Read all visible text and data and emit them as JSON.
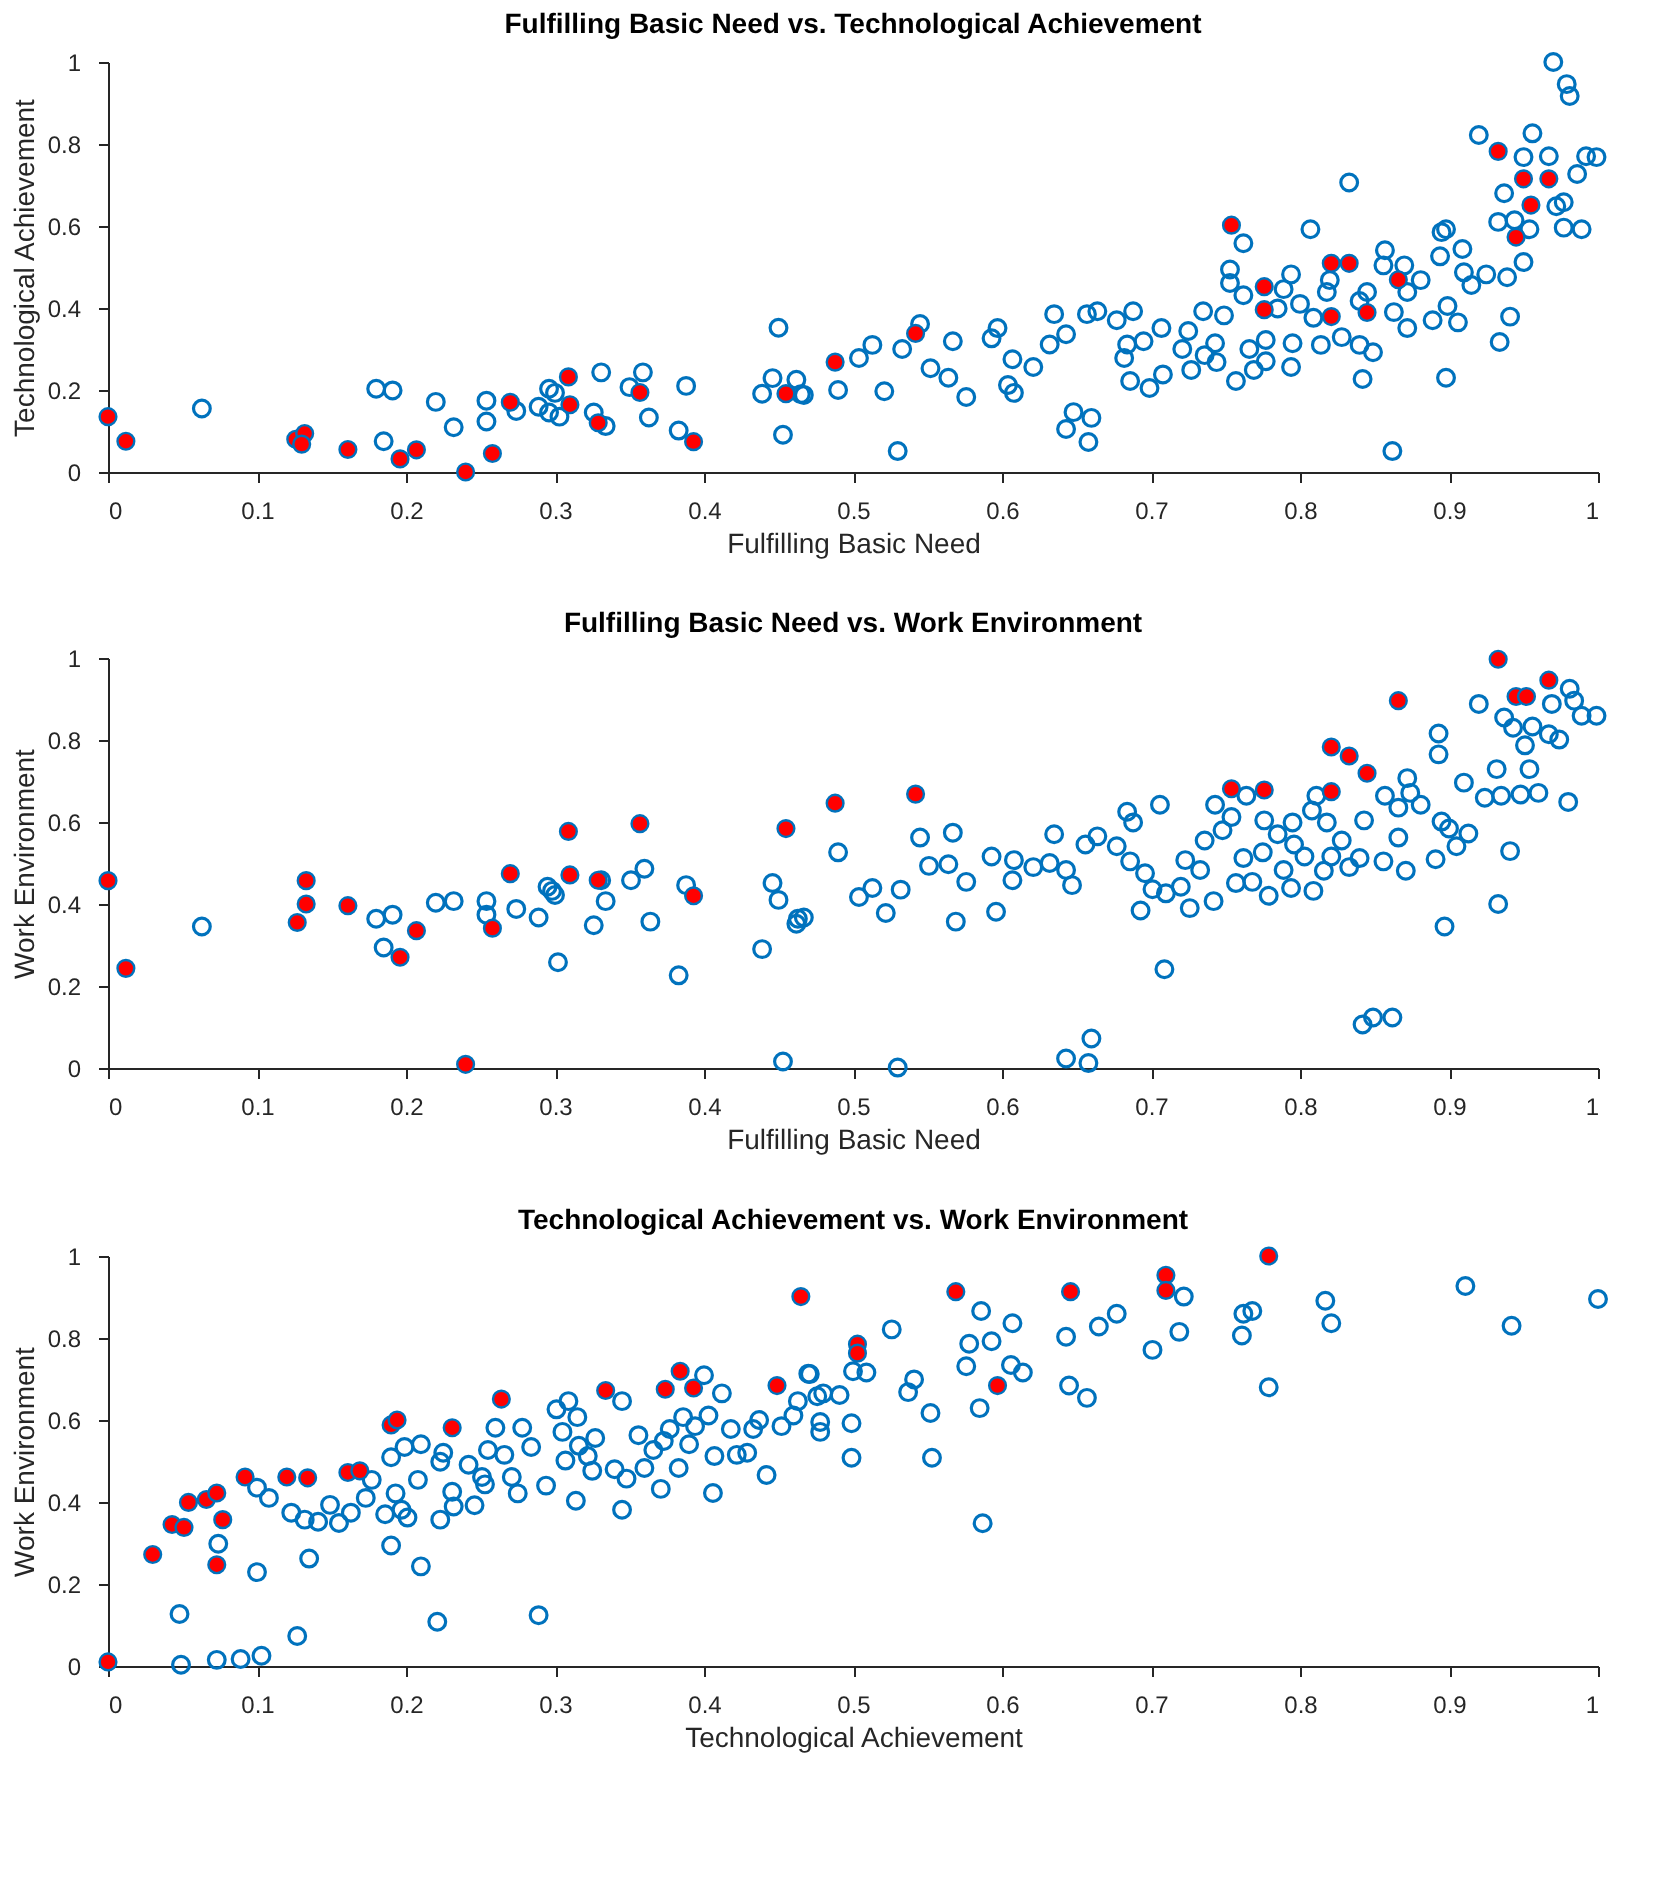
{
  "chart_data": [
    {
      "type": "scatter",
      "title": "Fulfilling Basic Need vs. Technological Achievement",
      "xlabel": "Fulfilling Basic Need",
      "ylabel": "Technological Achievement",
      "xlim": [
        0,
        1
      ],
      "ylim": [
        0,
        1
      ],
      "xticks": [
        0,
        0.1,
        0.2,
        0.3,
        0.4,
        0.5,
        0.6,
        0.7,
        0.8,
        0.9,
        1
      ],
      "yticks": [
        0,
        0.2,
        0.4,
        0.6,
        0.8,
        1
      ],
      "marker": "circle",
      "grid": false,
      "series": [
        {
          "color": "#0072bd",
          "x": [
            0.063,
            0.18,
            0.191,
            0.185,
            0.22,
            0.232,
            0.254,
            0.254,
            0.274,
            0.289,
            0.296,
            0.3,
            0.296,
            0.303,
            0.326,
            0.334,
            0.331,
            0.35,
            0.359,
            0.363,
            0.383,
            0.388,
            0.439,
            0.446,
            0.45,
            0.453,
            0.462,
            0.467,
            0.465,
            0.49,
            0.504,
            0.513,
            0.521,
            0.53,
            0.533,
            0.545,
            0.552,
            0.564,
            0.567,
            0.576,
            0.593,
            0.597,
            0.604,
            0.608,
            0.607,
            0.621,
            0.632,
            0.635,
            0.643,
            0.643,
            0.648,
            0.66,
            0.658,
            0.657,
            0.664,
            0.677,
            0.682,
            0.684,
            0.688,
            0.686,
            0.695,
            0.699,
            0.708,
            0.707,
            0.721,
            0.725,
            0.727,
            0.735,
            0.736,
            0.743,
            0.744,
            0.749,
            0.753,
            0.753,
            0.757,
            0.762,
            0.762,
            0.766,
            0.769,
            0.777,
            0.777,
            0.785,
            0.789,
            0.794,
            0.795,
            0.794,
            0.8,
            0.807,
            0.809,
            0.814,
            0.818,
            0.82,
            0.828,
            0.833,
            0.84,
            0.84,
            0.842,
            0.845,
            0.849,
            0.857,
            0.856,
            0.862,
            0.863,
            0.87,
            0.872,
            0.872,
            0.881,
            0.889,
            0.894,
            0.895,
            0.898,
            0.898,
            0.899,
            0.906,
            0.909,
            0.91,
            0.915,
            0.92,
            0.925,
            0.933,
            0.934,
            0.937,
            0.939,
            0.941,
            0.944,
            0.95,
            0.95,
            0.956,
            0.954,
            0.967,
            0.97,
            0.972,
            0.977,
            0.977,
            0.979,
            0.981,
            0.986,
            0.989,
            0.992,
            0.999
          ],
          "values": [
            0.155,
            0.203,
            0.199,
            0.075,
            0.171,
            0.109,
            0.174,
            0.123,
            0.149,
            0.159,
            0.203,
            0.193,
            0.145,
            0.135,
            0.145,
            0.112,
            0.243,
            0.207,
            0.243,
            0.133,
            0.101,
            0.21,
            0.191,
            0.229,
            0.352,
            0.091,
            0.225,
            0.188,
            0.19,
            0.2,
            0.278,
            0.31,
            0.197,
            0.051,
            0.3,
            0.361,
            0.253,
            0.23,
            0.319,
            0.183,
            0.326,
            0.351,
            0.212,
            0.193,
            0.275,
            0.256,
            0.311,
            0.385,
            0.336,
            0.105,
            0.146,
            0.132,
            0.073,
            0.385,
            0.392,
            0.37,
            0.278,
            0.311,
            0.392,
            0.222,
            0.319,
            0.205,
            0.238,
            0.351,
            0.3,
            0.344,
            0.249,
            0.392,
            0.285,
            0.314,
            0.268,
            0.382,
            0.494,
            0.461,
            0.222,
            0.558,
            0.431,
            0.3,
            0.249,
            0.322,
            0.27,
            0.399,
            0.446,
            0.482,
            0.314,
            0.256,
            0.41,
            0.592,
            0.376,
            0.31,
            0.439,
            0.468,
            0.329,
            0.706,
            0.417,
            0.31,
            0.227,
            0.439,
            0.292,
            0.541,
            0.504,
            0.051,
            0.39,
            0.504,
            0.351,
            0.439,
            0.468,
            0.37,
            0.526,
            0.585,
            0.592,
            0.23,
            0.405,
            0.365,
            0.544,
            0.487,
            0.456,
            0.822,
            0.482,
            0.61,
            0.317,
            0.68,
            0.475,
            0.379,
            0.614,
            0.512,
            0.768,
            0.826,
            0.592,
            0.77,
            1.0,
            0.648,
            0.658,
            0.596,
            0.946,
            0.917,
            0.727,
            0.592,
            0.77,
            0.768
          ]
        },
        {
          "color": "#ff0000",
          "x": [
            0,
            0.012,
            0.126,
            0.132,
            0.13,
            0.161,
            0.196,
            0.207,
            0.24,
            0.258,
            0.27,
            0.309,
            0.31,
            0.329,
            0.357,
            0.393,
            0.455,
            0.488,
            0.542,
            0.754,
            0.776,
            0.776,
            0.821,
            0.833,
            0.821,
            0.845,
            0.866,
            0.933,
            0.95,
            0.967,
            0.955,
            0.945
          ],
          "values": [
            0.135,
            0.075,
            0.08,
            0.094,
            0.068,
            0.055,
            0.032,
            0.054,
            0,
            0.045,
            0.17,
            0.232,
            0.164,
            0.12,
            0.194,
            0.074,
            0.191,
            0.268,
            0.338,
            0.602,
            0.452,
            0.396,
            0.509,
            0.509,
            0.379,
            0.389,
            0.469,
            0.782,
            0.715,
            0.715,
            0.651,
            0.573
          ]
        }
      ]
    },
    {
      "type": "scatter",
      "title": "Fulfilling Basic Need vs. Work Environment",
      "xlabel": "Fulfilling Basic Need",
      "ylabel": "Work Environment",
      "xlim": [
        0,
        1
      ],
      "ylim": [
        0,
        1
      ],
      "xticks": [
        0,
        0.1,
        0.2,
        0.3,
        0.4,
        0.5,
        0.6,
        0.7,
        0.8,
        0.9,
        1
      ],
      "yticks": [
        0,
        0.2,
        0.4,
        0.6,
        0.8,
        1
      ],
      "marker": "circle",
      "grid": false,
      "series": [
        {
          "color": "#0072bd",
          "x": [
            0.063,
            0.18,
            0.191,
            0.185,
            0.22,
            0.232,
            0.254,
            0.254,
            0.274,
            0.289,
            0.295,
            0.298,
            0.3,
            0.302,
            0.326,
            0.331,
            0.334,
            0.351,
            0.36,
            0.364,
            0.383,
            0.388,
            0.439,
            0.446,
            0.45,
            0.453,
            0.462,
            0.467,
            0.463,
            0.49,
            0.504,
            0.513,
            0.522,
            0.532,
            0.545,
            0.551,
            0.564,
            0.567,
            0.569,
            0.576,
            0.53,
            0.593,
            0.596,
            0.607,
            0.608,
            0.621,
            0.632,
            0.635,
            0.643,
            0.643,
            0.647,
            0.658,
            0.66,
            0.656,
            0.664,
            0.677,
            0.684,
            0.686,
            0.688,
            0.693,
            0.696,
            0.701,
            0.706,
            0.709,
            0.71,
            0.72,
            0.723,
            0.726,
            0.733,
            0.736,
            0.742,
            0.743,
            0.748,
            0.754,
            0.757,
            0.762,
            0.764,
            0.768,
            0.775,
            0.776,
            0.779,
            0.785,
            0.789,
            0.794,
            0.795,
            0.796,
            0.803,
            0.808,
            0.809,
            0.811,
            0.816,
            0.818,
            0.821,
            0.828,
            0.833,
            0.84,
            0.842,
            0.843,
            0.849,
            0.856,
            0.857,
            0.862,
            0.866,
            0.866,
            0.871,
            0.872,
            0.874,
            0.881,
            0.891,
            0.893,
            0.893,
            0.895,
            0.897,
            0.9,
            0.905,
            0.91,
            0.913,
            0.92,
            0.924,
            0.932,
            0.933,
            0.935,
            0.937,
            0.941,
            0.943,
            0.948,
            0.951,
            0.954,
            0.956,
            0.96,
            0.967,
            0.969,
            0.974,
            0.98,
            0.981,
            0.984,
            0.989,
            0.999
          ],
          "values": [
            0.345,
            0.364,
            0.374,
            0.294,
            0.403,
            0.407,
            0.407,
            0.374,
            0.388,
            0.367,
            0.442,
            0.432,
            0.422,
            0.258,
            0.348,
            0.458,
            0.407,
            0.458,
            0.486,
            0.357,
            0.226,
            0.446,
            0.29,
            0.451,
            0.41,
            0.016,
            0.352,
            0.367,
            0.364,
            0.526,
            0.417,
            0.439,
            0.378,
            0.435,
            0.562,
            0.493,
            0.497,
            0.574,
            0.357,
            0.454,
            0.001,
            0.516,
            0.381,
            0.458,
            0.507,
            0.49,
            0.5,
            0.57,
            0.483,
            0.023,
            0.446,
            0.012,
            0.072,
            0.545,
            0.565,
            0.541,
            0.625,
            0.504,
            0.599,
            0.384,
            0.475,
            0.436,
            0.642,
            0.241,
            0.426,
            0.442,
            0.507,
            0.39,
            0.483,
            0.555,
            0.407,
            0.642,
            0.58,
            0.612,
            0.451,
            0.512,
            0.664,
            0.454,
            0.526,
            0.604,
            0.42,
            0.57,
            0.483,
            0.439,
            0.599,
            0.545,
            0.516,
            0.628,
            0.432,
            0.664,
            0.481,
            0.599,
            0.516,
            0.555,
            0.49,
            0.512,
            0.106,
            0.604,
            0.123,
            0.504,
            0.664,
            0.123,
            0.635,
            0.562,
            0.481,
            0.707,
            0.671,
            0.642,
            0.509,
            0.816,
            0.765,
            0.601,
            0.345,
            0.584,
            0.541,
            0.696,
            0.572,
            0.888,
            0.659,
            0.729,
            0.4,
            0.664,
            0.855,
            0.529,
            0.83,
            0.667,
            0.787,
            0.729,
            0.833,
            0.671,
            0.814,
            0.888,
            0.801,
            0.649,
            0.925,
            0.896,
            0.859,
            0.859
          ]
        },
        {
          "color": "#ff0000",
          "x": [
            0,
            0.012,
            0.127,
            0.133,
            0.133,
            0.161,
            0.196,
            0.207,
            0.24,
            0.258,
            0.27,
            0.309,
            0.31,
            0.329,
            0.357,
            0.393,
            0.455,
            0.488,
            0.542,
            0.754,
            0.776,
            0.821,
            0.821,
            0.833,
            0.845,
            0.866,
            0.933,
            0.945,
            0.952,
            0.967
          ],
          "values": [
            0.457,
            0.243,
            0.355,
            0.4,
            0.457,
            0.396,
            0.27,
            0.335,
            0.009,
            0.341,
            0.474,
            0.577,
            0.471,
            0.458,
            0.596,
            0.42,
            0.584,
            0.646,
            0.668,
            0.681,
            0.678,
            0.674,
            0.783,
            0.761,
            0.719,
            0.896,
            0.997,
            0.906,
            0.906,
            0.946
          ]
        }
      ]
    },
    {
      "type": "scatter",
      "title": "Technological Achievement vs. Work Environment",
      "xlabel": "Technological Achievement",
      "ylabel": "Work Environment",
      "xlim": [
        0,
        1
      ],
      "ylim": [
        0,
        1
      ],
      "xticks": [
        0,
        0.1,
        0.2,
        0.3,
        0.4,
        0.5,
        0.6,
        0.7,
        0.8,
        0.9,
        1
      ],
      "yticks": [
        0,
        0.2,
        0.4,
        0.6,
        0.8,
        1
      ],
      "marker": "circle",
      "grid": false,
      "series": [
        {
          "color": "#0072bd",
          "x": [
            0.048,
            0.049,
            0.073,
            0.074,
            0.089,
            0.1,
            0.103,
            0.1,
            0.108,
            0.123,
            0.127,
            0.132,
            0.135,
            0.141,
            0.149,
            0.155,
            0.163,
            0.173,
            0.177,
            0.186,
            0.19,
            0.19,
            0.193,
            0.197,
            0.199,
            0.201,
            0.21,
            0.21,
            0.208,
            0.221,
            0.223,
            0.223,
            0.225,
            0.231,
            0.232,
            0.242,
            0.246,
            0.251,
            0.253,
            0.255,
            0.26,
            0.266,
            0.271,
            0.275,
            0.278,
            0.284,
            0.289,
            0.294,
            0.301,
            0.305,
            0.307,
            0.309,
            0.314,
            0.315,
            0.316,
            0.322,
            0.325,
            0.327,
            0.34,
            0.345,
            0.345,
            0.348,
            0.356,
            0.36,
            0.366,
            0.371,
            0.373,
            0.377,
            0.383,
            0.386,
            0.39,
            0.394,
            0.4,
            0.403,
            0.406,
            0.407,
            0.412,
            0.418,
            0.422,
            0.429,
            0.433,
            0.437,
            0.442,
            0.452,
            0.46,
            0.471,
            0.476,
            0.478,
            0.47,
            0.463,
            0.478,
            0.48,
            0.491,
            0.499,
            0.499,
            0.5,
            0.509,
            0.526,
            0.537,
            0.541,
            0.552,
            0.553,
            0.576,
            0.578,
            0.585,
            0.586,
            0.587,
            0.593,
            0.606,
            0.607,
            0.614,
            0.643,
            0.645,
            0.657,
            0.665,
            0.677,
            0.701,
            0.719,
            0.722,
            0.761,
            0.762,
            0.768,
            0.779,
            0.817,
            0.821,
            0.911,
            0.942,
            1.0
          ],
          "values": [
            0.127,
            0.003,
            0.015,
            0.298,
            0.017,
            0.229,
            0.025,
            0.435,
            0.41,
            0.374,
            0.073,
            0.357,
            0.262,
            0.352,
            0.393,
            0.349,
            0.374,
            0.41,
            0.454,
            0.37,
            0.294,
            0.509,
            0.421,
            0.381,
            0.534,
            0.362,
            0.243,
            0.541,
            0.454,
            0.108,
            0.357,
            0.498,
            0.52,
            0.425,
            0.389,
            0.491,
            0.392,
            0.461,
            0.443,
            0.527,
            0.581,
            0.515,
            0.461,
            0.421,
            0.581,
            0.534,
            0.124,
            0.44,
            0.626,
            0.571,
            0.501,
            0.646,
            0.403,
            0.607,
            0.537,
            0.512,
            0.476,
            0.556,
            0.48,
            0.646,
            0.381,
            0.457,
            0.563,
            0.483,
            0.527,
            0.432,
            0.549,
            0.578,
            0.483,
            0.607,
            0.541,
            0.585,
            0.709,
            0.611,
            0.422,
            0.512,
            0.665,
            0.578,
            0.515,
            0.52,
            0.578,
            0.6,
            0.466,
            0.585,
            0.611,
            0.712,
            0.658,
            0.571,
            0.713,
            0.646,
            0.595,
            0.665,
            0.661,
            0.592,
            0.508,
            0.719,
            0.716,
            0.821,
            0.668,
            0.699,
            0.617,
            0.508,
            0.731,
            0.786,
            0.629,
            0.866,
            0.348,
            0.792,
            0.734,
            0.836,
            0.716,
            0.803,
            0.684,
            0.654,
            0.828,
            0.859,
            0.771,
            0.815,
            0.901,
            0.806,
            0.859,
            0.866,
            0.68,
            0.891,
            0.836,
            0.927,
            0.83,
            0.895
          ]
        },
        {
          "color": "#ff0000",
          "x": [
            0,
            0.03,
            0.043,
            0.051,
            0.054,
            0.066,
            0.073,
            0.073,
            0.077,
            0.092,
            0.12,
            0.134,
            0.161,
            0.169,
            0.19,
            0.194,
            0.231,
            0.264,
            0.334,
            0.374,
            0.384,
            0.393,
            0.449,
            0.465,
            0.503,
            0.503,
            0.569,
            0.597,
            0.646,
            0.71,
            0.71,
            0.779
          ],
          "values": [
            0.01,
            0.272,
            0.345,
            0.338,
            0.399,
            0.406,
            0.422,
            0.247,
            0.357,
            0.461,
            0.461,
            0.459,
            0.472,
            0.476,
            0.588,
            0.6,
            0.581,
            0.651,
            0.672,
            0.675,
            0.719,
            0.678,
            0.684,
            0.901,
            0.785,
            0.763,
            0.913,
            0.684,
            0.913,
            0.953,
            0.916,
            1.0
          ]
        }
      ]
    }
  ]
}
